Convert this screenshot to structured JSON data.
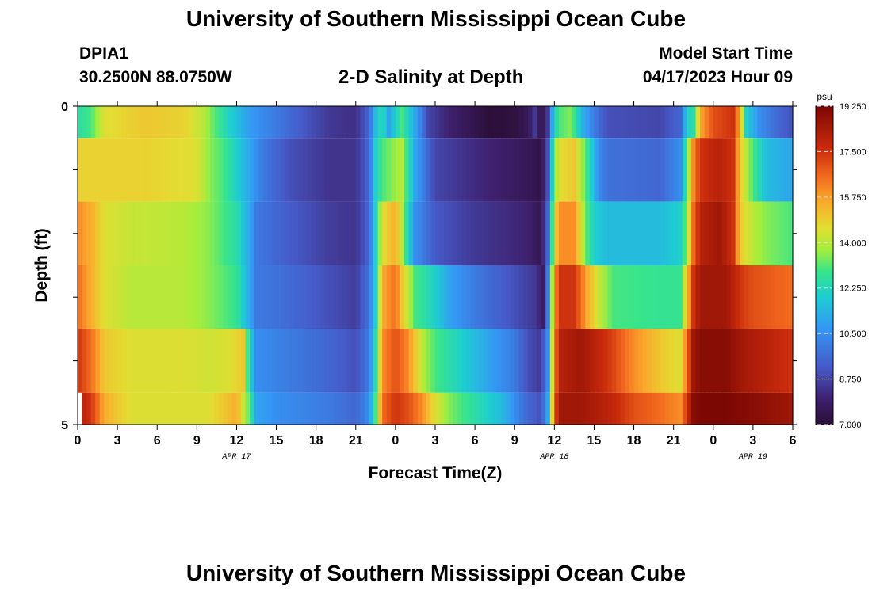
{
  "header": {
    "title": "University of Southern Mississippi Ocean Cube",
    "station": "DPIA1",
    "coordinates": "30.2500N  88.0750W",
    "subtitle": "2-D Salinity at Depth",
    "model_start_label": "Model Start Time",
    "model_start_value": "04/17/2023 Hour 09"
  },
  "footer": {
    "title": "University of Southern Mississippi Ocean Cube"
  },
  "chart_data": {
    "type": "heatmap",
    "title": "2-D Salinity at Depth",
    "xlabel": "Forecast Time(Z)",
    "ylabel": "Depth (ft)",
    "xlim": [
      0,
      54
    ],
    "ylim": [
      0,
      5
    ],
    "x_ticks": [
      0,
      3,
      6,
      9,
      12,
      15,
      18,
      21,
      24,
      27,
      30,
      33,
      36,
      39,
      42,
      45,
      48,
      51,
      54
    ],
    "x_tick_labels": [
      "0",
      "3",
      "6",
      "9",
      "12",
      "15",
      "18",
      "21",
      "0",
      "3",
      "6",
      "9",
      "12",
      "15",
      "18",
      "21",
      "0",
      "3",
      "6"
    ],
    "y_tick_labels": [
      {
        "value": 0,
        "label": "0"
      },
      {
        "value": 5,
        "label": "5"
      }
    ],
    "date_labels": [
      {
        "x": 12,
        "label": "APR 17"
      },
      {
        "x": 36,
        "label": "APR 18"
      },
      {
        "x": 51,
        "label": "APR 19"
      }
    ],
    "colorbar": {
      "unit": "psu",
      "min": 7.0,
      "max": 19.25,
      "ticks": [
        7.0,
        8.75,
        10.5,
        12.25,
        14.0,
        15.75,
        17.5,
        19.25
      ],
      "tick_labels": [
        "7.000",
        "8.750",
        "10.500",
        "12.250",
        "14.000",
        "15.750",
        "17.500",
        "19.250"
      ]
    },
    "layers": [
      {
        "depth_top": 0,
        "depth_bottom": 0.5,
        "keypoints": [
          [
            0,
            12.5
          ],
          [
            1,
            13
          ],
          [
            2,
            14.5
          ],
          [
            5,
            15
          ],
          [
            8,
            14.8
          ],
          [
            9.5,
            14
          ],
          [
            10.5,
            13
          ],
          [
            11.5,
            12
          ],
          [
            13,
            10.8
          ],
          [
            15,
            10
          ],
          [
            17,
            9.2
          ],
          [
            19,
            8.5
          ],
          [
            21,
            8.3
          ],
          [
            22,
            9.5
          ],
          [
            22.5,
            11.5
          ],
          [
            23,
            12.5
          ],
          [
            23.5,
            11
          ],
          [
            24.5,
            13
          ],
          [
            25.5,
            11
          ],
          [
            26.5,
            8.8
          ],
          [
            28,
            8
          ],
          [
            30,
            7.4
          ],
          [
            31,
            7.1
          ],
          [
            33,
            7.2
          ],
          [
            34,
            7.6
          ],
          [
            34.5,
            8.5
          ],
          [
            35,
            7.3
          ],
          [
            35.5,
            8.5
          ],
          [
            35.9,
            11.5
          ],
          [
            36.3,
            13
          ],
          [
            37.3,
            13.5
          ],
          [
            38,
            11.5
          ],
          [
            39,
            10
          ],
          [
            40,
            9
          ],
          [
            44,
            8.8
          ],
          [
            45.5,
            9.5
          ],
          [
            46,
            12
          ],
          [
            46.5,
            12.5
          ],
          [
            47,
            15.5
          ],
          [
            48,
            17
          ],
          [
            49.5,
            17.5
          ],
          [
            50,
            15.5
          ],
          [
            50.5,
            12
          ],
          [
            51.5,
            10.5
          ],
          [
            52.5,
            9.8
          ],
          [
            54,
            9
          ]
        ]
      },
      {
        "depth_top": 0.5,
        "depth_bottom": 1.5,
        "keypoints": [
          [
            0,
            14.8
          ],
          [
            5,
            14.8
          ],
          [
            9,
            14.5
          ],
          [
            10,
            13.5
          ],
          [
            11,
            13
          ],
          [
            12,
            12
          ],
          [
            13,
            11
          ],
          [
            14,
            10
          ],
          [
            16,
            9
          ],
          [
            19,
            8.4
          ],
          [
            21,
            8.4
          ],
          [
            22,
            9.5
          ],
          [
            22.5,
            12
          ],
          [
            23,
            13
          ],
          [
            24.5,
            14
          ],
          [
            25.5,
            11
          ],
          [
            27,
            8.8
          ],
          [
            30,
            8.2
          ],
          [
            34,
            7.6
          ],
          [
            35,
            7.3
          ],
          [
            35.5,
            9
          ],
          [
            35.9,
            12.5
          ],
          [
            36.3,
            14.5
          ],
          [
            37.5,
            15
          ],
          [
            38.2,
            13.5
          ],
          [
            38.8,
            12
          ],
          [
            39.3,
            10.5
          ],
          [
            40,
            9.8
          ],
          [
            44,
            9.5
          ],
          [
            45.5,
            10.5
          ],
          [
            46,
            13
          ],
          [
            46.5,
            16
          ],
          [
            47,
            17.5
          ],
          [
            48.5,
            18
          ],
          [
            49.5,
            17.5
          ],
          [
            50,
            15
          ],
          [
            51,
            13
          ],
          [
            52,
            11.5
          ],
          [
            54,
            11
          ]
        ]
      },
      {
        "depth_top": 1.5,
        "depth_bottom": 2.5,
        "keypoints": [
          [
            0,
            16
          ],
          [
            1,
            15.5
          ],
          [
            2,
            14.5
          ],
          [
            4,
            14.2
          ],
          [
            8,
            14
          ],
          [
            10,
            13.5
          ],
          [
            11,
            13
          ],
          [
            12,
            12.5
          ],
          [
            13,
            11
          ],
          [
            13.5,
            10
          ],
          [
            15,
            9.5
          ],
          [
            19,
            8.6
          ],
          [
            21,
            8.4
          ],
          [
            22,
            9.5
          ],
          [
            22.5,
            12
          ],
          [
            23,
            14.5
          ],
          [
            24,
            15.5
          ],
          [
            24.5,
            14
          ],
          [
            25,
            12
          ],
          [
            25.5,
            10.5
          ],
          [
            27,
            9.2
          ],
          [
            30,
            8.5
          ],
          [
            34,
            8
          ],
          [
            35,
            7.5
          ],
          [
            35.5,
            9.5
          ],
          [
            35.9,
            13.5
          ],
          [
            36.3,
            16
          ],
          [
            37.5,
            16
          ],
          [
            38,
            14.5
          ],
          [
            38.5,
            13
          ],
          [
            39,
            12
          ],
          [
            40,
            11.5
          ],
          [
            44,
            11.5
          ],
          [
            45.5,
            12
          ],
          [
            46,
            13.5
          ],
          [
            46.5,
            16.5
          ],
          [
            47,
            18
          ],
          [
            48.5,
            18.5
          ],
          [
            49.5,
            17.5
          ],
          [
            50,
            15
          ],
          [
            51,
            14
          ],
          [
            52,
            13.5
          ],
          [
            54,
            13
          ]
        ]
      },
      {
        "depth_top": 2.5,
        "depth_bottom": 3.5,
        "keypoints": [
          [
            0,
            16.5
          ],
          [
            1,
            15.5
          ],
          [
            2,
            14.5
          ],
          [
            4,
            14
          ],
          [
            8,
            14
          ],
          [
            10,
            13.5
          ],
          [
            12,
            12.8
          ],
          [
            13,
            11
          ],
          [
            13.5,
            10
          ],
          [
            15,
            9.8
          ],
          [
            19,
            9
          ],
          [
            21,
            8.6
          ],
          [
            22,
            9.8
          ],
          [
            22.5,
            12
          ],
          [
            23,
            15.5
          ],
          [
            24,
            16.5
          ],
          [
            24.5,
            15
          ],
          [
            25.5,
            13
          ],
          [
            27,
            12
          ],
          [
            28,
            11
          ],
          [
            30,
            10
          ],
          [
            33,
            9
          ],
          [
            34.5,
            8.5
          ],
          [
            35.2,
            7.8
          ],
          [
            35.5,
            10
          ],
          [
            35.9,
            14.5
          ],
          [
            36.3,
            17.5
          ],
          [
            37.5,
            17.5
          ],
          [
            38.5,
            15.5
          ],
          [
            39.5,
            14
          ],
          [
            40.5,
            13
          ],
          [
            44,
            12.8
          ],
          [
            45.5,
            12.8
          ],
          [
            46,
            15
          ],
          [
            46.5,
            17.5
          ],
          [
            47,
            18.5
          ],
          [
            49,
            18.5
          ],
          [
            50,
            17.5
          ],
          [
            51,
            17
          ],
          [
            54,
            16.5
          ]
        ]
      },
      {
        "depth_top": 3.5,
        "depth_bottom": 4.5,
        "keypoints": [
          [
            0,
            17.5
          ],
          [
            1,
            16.5
          ],
          [
            2,
            15
          ],
          [
            4,
            14.5
          ],
          [
            8,
            14.5
          ],
          [
            10,
            14.3
          ],
          [
            11.5,
            14.5
          ],
          [
            12.5,
            15
          ],
          [
            13,
            12
          ],
          [
            13.5,
            10.5
          ],
          [
            15,
            10.2
          ],
          [
            19,
            9.5
          ],
          [
            21,
            9
          ],
          [
            22,
            10
          ],
          [
            22.5,
            12.5
          ],
          [
            23,
            16
          ],
          [
            24,
            17
          ],
          [
            25,
            16
          ],
          [
            26,
            14
          ],
          [
            27,
            13
          ],
          [
            28,
            12.5
          ],
          [
            29,
            12
          ],
          [
            31,
            11
          ],
          [
            33,
            10
          ],
          [
            34,
            9
          ],
          [
            35,
            8.5
          ],
          [
            35.5,
            10.5
          ],
          [
            35.9,
            15
          ],
          [
            36.3,
            18
          ],
          [
            38,
            18.5
          ],
          [
            40,
            17.5
          ],
          [
            42,
            16
          ],
          [
            44,
            15
          ],
          [
            45.5,
            14.5
          ],
          [
            46,
            16.5
          ],
          [
            46.5,
            18.5
          ],
          [
            47,
            19
          ],
          [
            49,
            19
          ],
          [
            50,
            18.5
          ],
          [
            52,
            18
          ],
          [
            54,
            17.5
          ]
        ]
      },
      {
        "depth_top": 4.5,
        "depth_bottom": 5,
        "keypoints": [
          [
            0.3,
            18
          ],
          [
            1,
            17.5
          ],
          [
            2,
            15.5
          ],
          [
            4,
            14.5
          ],
          [
            8,
            14.5
          ],
          [
            10,
            14.5
          ],
          [
            11,
            15
          ],
          [
            12,
            15.5
          ],
          [
            13,
            13
          ],
          [
            13.5,
            11
          ],
          [
            15,
            10.5
          ],
          [
            19,
            10
          ],
          [
            21,
            9.5
          ],
          [
            22,
            10.5
          ],
          [
            22.5,
            13
          ],
          [
            23,
            16.5
          ],
          [
            24,
            17.5
          ],
          [
            25,
            17
          ],
          [
            26,
            16
          ],
          [
            27,
            14.5
          ],
          [
            28,
            13.5
          ],
          [
            29,
            13
          ],
          [
            30,
            12.5
          ],
          [
            31,
            12
          ],
          [
            32,
            11.5
          ],
          [
            33,
            10.5
          ],
          [
            34,
            9.5
          ],
          [
            35,
            9
          ],
          [
            35.5,
            11
          ],
          [
            35.9,
            15.5
          ],
          [
            36.3,
            18.5
          ],
          [
            38,
            18.5
          ],
          [
            40,
            18
          ],
          [
            42,
            17
          ],
          [
            44,
            16.5
          ],
          [
            45.5,
            16
          ],
          [
            46,
            17.5
          ],
          [
            46.5,
            19
          ],
          [
            47,
            19.25
          ],
          [
            49,
            19.25
          ],
          [
            51,
            19
          ],
          [
            54,
            18.5
          ]
        ]
      }
    ]
  }
}
